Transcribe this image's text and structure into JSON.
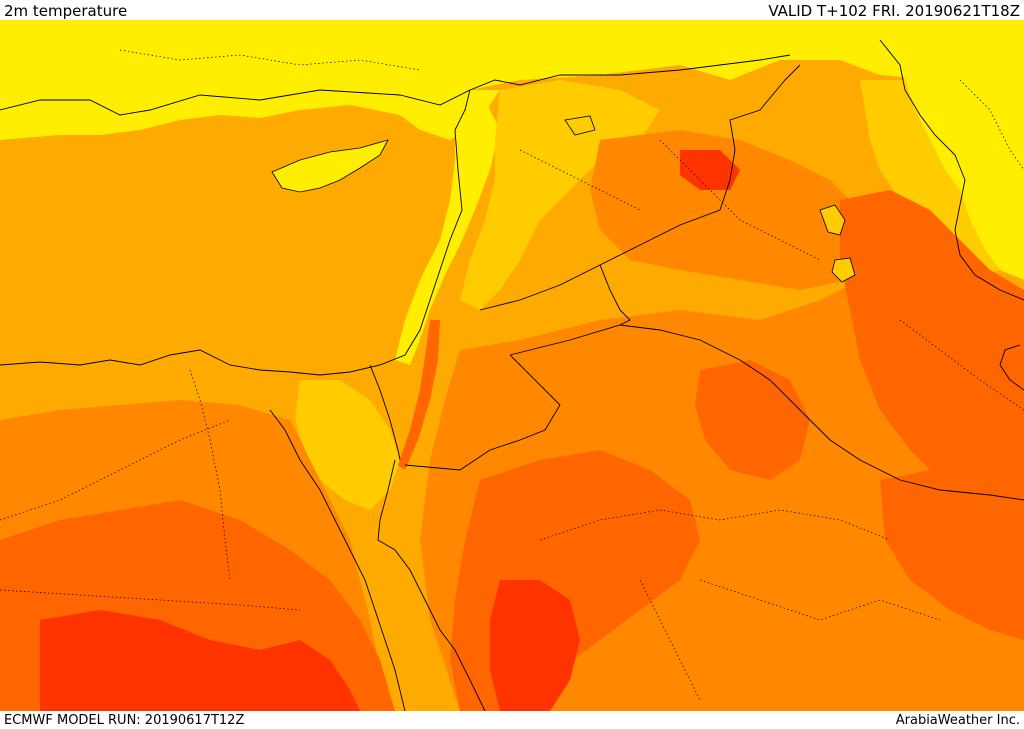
{
  "header": {
    "title": "2m temperature",
    "valid": "VALID T+102 FRI. 20190621T18Z"
  },
  "footer": {
    "model_run": "ECMWF MODEL RUN: 20190617T12Z",
    "credit": "ArabiaWeather Inc."
  },
  "map": {
    "field": "2m temperature",
    "colors": {
      "band_1": "#ffff00",
      "band_2": "#ffcc00",
      "band_3": "#ffaa00",
      "band_4": "#ff8800",
      "band_5": "#ff6600",
      "band_6": "#ff3300",
      "borders": "#000000"
    }
  }
}
